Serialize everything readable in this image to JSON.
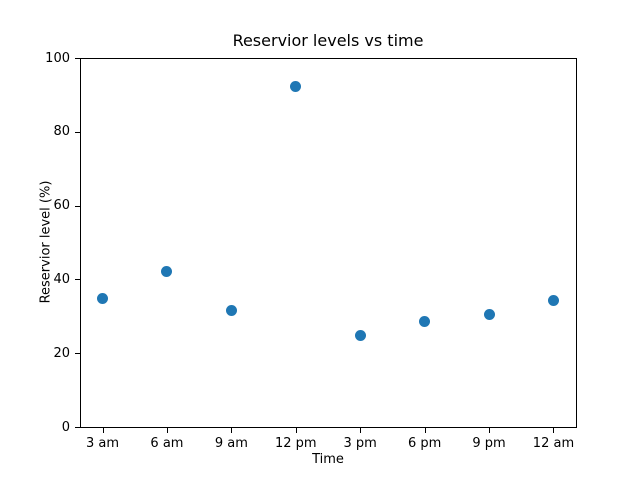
{
  "chart_data": {
    "type": "scatter",
    "title": "Reservior levels vs time",
    "xlabel": "Time",
    "ylabel": "Reservior level (%)",
    "categories": [
      "3 am",
      "6 am",
      "9 am",
      "12 pm",
      "3 pm",
      "6 pm",
      "9 pm",
      "12 am"
    ],
    "values": [
      34.9,
      42.2,
      31.6,
      92.3,
      24.9,
      28.5,
      30.5,
      34.2
    ],
    "ylim": [
      0,
      100
    ],
    "yticks": [
      0,
      20,
      40,
      60,
      80,
      100
    ],
    "marker_color": "#1f77b4",
    "grid": false,
    "legend_position": "none"
  }
}
